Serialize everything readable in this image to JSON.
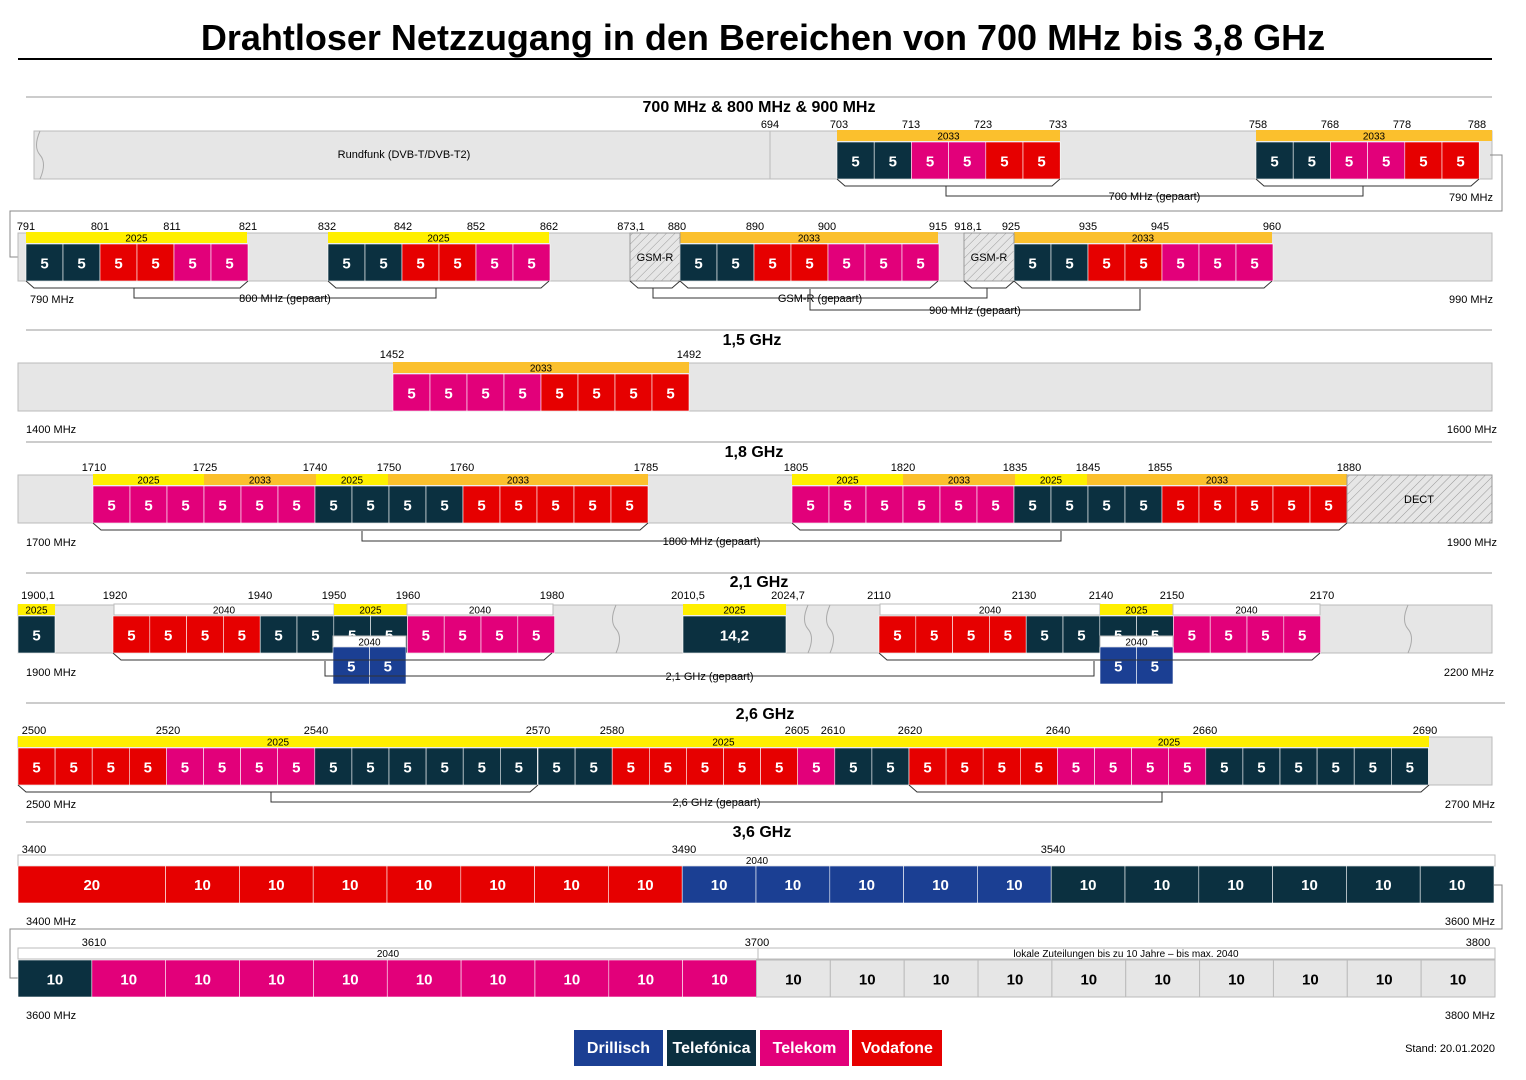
{
  "title": "Drahtloser Netzzugang in den Bereichen von 700 MHz bis 3,8 GHz",
  "colors": {
    "drillisch": "#1b3f93",
    "telefonica": "#0b3040",
    "telekom": "#e2007a",
    "vodafone": "#e60000",
    "lizenz_2025": "#ffef00",
    "lizenz_2033": "#fbc02d",
    "background_band": "#e6e6e6",
    "local_band": "#e6e6e6"
  },
  "legend": [
    {
      "label": "Drillisch",
      "op": "drillisch"
    },
    {
      "label": "Telefónica",
      "op": "telefonica"
    },
    {
      "label": "Telekom",
      "op": "telekom"
    },
    {
      "label": "Vodafone",
      "op": "vodafone"
    }
  ],
  "stand": "Stand: 20.01.2020",
  "sections": [
    {
      "heading": "700 MHz & 800 MHz & 900 MHz",
      "rows": [
        {
          "left_label": "",
          "right_label": "790 MHz",
          "freq_labels": [
            "694",
            "703",
            "713",
            "723",
            "733",
            "758",
            "768",
            "778",
            "788"
          ],
          "background_text": "Rundfunk (DVB-T/DVB-T2)",
          "blocks": [
            "telefonica",
            "telefonica",
            "telekom",
            "telekom",
            "vodafone",
            "vodafone",
            "telefonica",
            "telefonica",
            "telekom",
            "telekom",
            "vodafone",
            "vodafone"
          ],
          "block_values": [
            "5",
            "5",
            "5",
            "5",
            "5",
            "5",
            "5",
            "5",
            "5",
            "5",
            "5",
            "5"
          ],
          "license_bars": [
            "2033",
            "2033"
          ],
          "pairing": "700 MHz (gepaart)"
        },
        {
          "left_label": "790 MHz",
          "right_label": "990 MHz",
          "freq_labels": [
            "791",
            "801",
            "811",
            "821",
            "832",
            "842",
            "852",
            "862",
            "873,1",
            "880",
            "890",
            "900",
            "915",
            "918,1",
            "925",
            "935",
            "945",
            "960"
          ],
          "gsmr": [
            "GSM-R",
            "GSM-R"
          ],
          "blocks_a": [
            "telefonica",
            "telefonica",
            "vodafone",
            "vodafone",
            "telekom",
            "telekom"
          ],
          "blocks_b": [
            "telefonica",
            "telefonica",
            "vodafone",
            "vodafone",
            "telekom",
            "telekom"
          ],
          "blocks_c": [
            "telefonica",
            "telefonica",
            "vodafone",
            "vodafone",
            "telekom",
            "telekom",
            "telekom"
          ],
          "blocks_d": [
            "telefonica",
            "telefonica",
            "vodafone",
            "vodafone",
            "telekom",
            "telekom",
            "telekom"
          ],
          "block_value": "5",
          "license_bars": [
            "2025",
            "2025",
            "2033",
            "2033"
          ],
          "pairings": [
            "800 MHz (gepaart)",
            "GSM-R (gepaart)",
            "900 MHz (gepaart)"
          ]
        }
      ]
    },
    {
      "heading": "1,5 GHz",
      "left_label": "1400 MHz",
      "right_label": "1600 MHz",
      "freq_labels": [
        "1452",
        "1492"
      ],
      "license_bars": [
        "2033"
      ],
      "blocks": [
        "telekom",
        "telekom",
        "telekom",
        "telekom",
        "vodafone",
        "vodafone",
        "vodafone",
        "vodafone"
      ],
      "block_value": "5"
    },
    {
      "heading": "1,8 GHz",
      "left_label": "1700 MHz",
      "right_label": "1900 MHz",
      "freq_labels": [
        "1710",
        "1725",
        "1740",
        "1750",
        "1760",
        "1785",
        "1805",
        "1820",
        "1835",
        "1845",
        "1855",
        "1880"
      ],
      "license_bars": [
        "2025",
        "2033",
        "2025",
        "2033",
        "2025",
        "2033",
        "2025",
        "2033"
      ],
      "blocks_ul": [
        "telekom",
        "telekom",
        "telekom",
        "telekom",
        "telekom",
        "telekom",
        "telefonica",
        "telefonica",
        "telefonica",
        "telefonica",
        "vodafone",
        "vodafone",
        "vodafone",
        "vodafone",
        "vodafone"
      ],
      "blocks_dl": [
        "telekom",
        "telekom",
        "telekom",
        "telekom",
        "telekom",
        "telekom",
        "telefonica",
        "telefonica",
        "telefonica",
        "telefonica",
        "vodafone",
        "vodafone",
        "vodafone",
        "vodafone",
        "vodafone"
      ],
      "block_value": "5",
      "dect": "DECT",
      "pairing": "1800 MHz (gepaart)"
    },
    {
      "heading": "2,1 GHz",
      "left_label": "1900 MHz",
      "right_label": "2200 MHz",
      "freq_labels": [
        "1900,1",
        "1920",
        "1940",
        "1950",
        "1960",
        "1980",
        "2010,5",
        "2024,7",
        "2110",
        "2130",
        "2140",
        "2150",
        "2170"
      ],
      "license_bars": [
        "2025",
        "2040",
        "2025",
        "2040",
        "2025",
        "2040",
        "2025",
        "2040"
      ],
      "single_block": {
        "op": "telefonica",
        "value": "5"
      },
      "tdd_block": {
        "op": "telefonica",
        "value": "14,2"
      },
      "blocks_ul": [
        "vodafone",
        "vodafone",
        "vodafone",
        "vodafone",
        "telefonica",
        "telefonica",
        "telefonica",
        "telefonica",
        "telekom",
        "telekom",
        "telekom",
        "telekom"
      ],
      "blocks_dl": [
        "vodafone",
        "vodafone",
        "vodafone",
        "vodafone",
        "telefonica",
        "telefonica",
        "telefonica",
        "telefonica",
        "telekom",
        "telekom",
        "telekom",
        "telekom"
      ],
      "drillisch_label": "2040",
      "drillisch_blocks": [
        "drillisch",
        "drillisch"
      ],
      "block_value": "5",
      "pairing": "2,1 GHz (gepaart)"
    },
    {
      "heading": "2,6 GHz",
      "left_label": "2500 MHz",
      "right_label": "2700 MHz",
      "freq_labels": [
        "2500",
        "2520",
        "2540",
        "2570",
        "2580",
        "2605",
        "2610",
        "2620",
        "2640",
        "2660",
        "2690"
      ],
      "license_bars": [
        "2025",
        "2025",
        "2025"
      ],
      "blocks_ul": [
        "vodafone",
        "vodafone",
        "vodafone",
        "vodafone",
        "telekom",
        "telekom",
        "telekom",
        "telekom",
        "telefonica",
        "telefonica",
        "telefonica",
        "telefonica",
        "telefonica",
        "telefonica"
      ],
      "blocks_tdd": [
        "telefonica",
        "telefonica",
        "vodafone",
        "vodafone",
        "vodafone",
        "vodafone",
        "vodafone",
        "telekom",
        "telefonica",
        "telefonica"
      ],
      "blocks_dl": [
        "vodafone",
        "vodafone",
        "vodafone",
        "vodafone",
        "telekom",
        "telekom",
        "telekom",
        "telekom",
        "telefonica",
        "telefonica",
        "telefonica",
        "telefonica",
        "telefonica",
        "telefonica"
      ],
      "block_value": "5",
      "pairing": "2,6 GHz (gepaart)"
    },
    {
      "heading": "3,6 GHz",
      "rows": [
        {
          "left_label": "3400 MHz",
          "right_label": "3600 MHz",
          "freq_labels": [
            "3400",
            "3490",
            "3540"
          ],
          "license": "2040",
          "blocks": [
            {
              "op": "vodafone",
              "value": "20",
              "span": 2
            },
            {
              "op": "vodafone",
              "value": "10",
              "span": 1
            },
            {
              "op": "vodafone",
              "value": "10",
              "span": 1
            },
            {
              "op": "vodafone",
              "value": "10",
              "span": 1
            },
            {
              "op": "vodafone",
              "value": "10",
              "span": 1
            },
            {
              "op": "vodafone",
              "value": "10",
              "span": 1
            },
            {
              "op": "vodafone",
              "value": "10",
              "span": 1
            },
            {
              "op": "vodafone",
              "value": "10",
              "span": 1
            },
            {
              "op": "drillisch",
              "value": "10",
              "span": 1
            },
            {
              "op": "drillisch",
              "value": "10",
              "span": 1
            },
            {
              "op": "drillisch",
              "value": "10",
              "span": 1
            },
            {
              "op": "drillisch",
              "value": "10",
              "span": 1
            },
            {
              "op": "drillisch",
              "value": "10",
              "span": 1
            },
            {
              "op": "telefonica",
              "value": "10",
              "span": 1
            },
            {
              "op": "telefonica",
              "value": "10",
              "span": 1
            },
            {
              "op": "telefonica",
              "value": "10",
              "span": 1
            },
            {
              "op": "telefonica",
              "value": "10",
              "span": 1
            },
            {
              "op": "telefonica",
              "value": "10",
              "span": 1
            },
            {
              "op": "telefonica",
              "value": "10",
              "span": 1
            }
          ]
        },
        {
          "left_label": "3600 MHz",
          "right_label": "3800 MHz",
          "freq_labels": [
            "3610",
            "3700",
            "3800"
          ],
          "license": "2040",
          "local_text": "lokale Zuteilungen bis zu 10 Jahre – bis max. 2040",
          "blocks": [
            {
              "op": "telefonica",
              "value": "10"
            },
            {
              "op": "telekom",
              "value": "10"
            },
            {
              "op": "telekom",
              "value": "10"
            },
            {
              "op": "telekom",
              "value": "10"
            },
            {
              "op": "telekom",
              "value": "10"
            },
            {
              "op": "telekom",
              "value": "10"
            },
            {
              "op": "telekom",
              "value": "10"
            },
            {
              "op": "telekom",
              "value": "10"
            },
            {
              "op": "telekom",
              "value": "10"
            },
            {
              "op": "telekom",
              "value": "10"
            },
            {
              "op": "local",
              "value": "10"
            },
            {
              "op": "local",
              "value": "10"
            },
            {
              "op": "local",
              "value": "10"
            },
            {
              "op": "local",
              "value": "10"
            },
            {
              "op": "local",
              "value": "10"
            },
            {
              "op": "local",
              "value": "10"
            },
            {
              "op": "local",
              "value": "10"
            },
            {
              "op": "local",
              "value": "10"
            },
            {
              "op": "local",
              "value": "10"
            },
            {
              "op": "local",
              "value": "10"
            }
          ]
        }
      ]
    }
  ]
}
